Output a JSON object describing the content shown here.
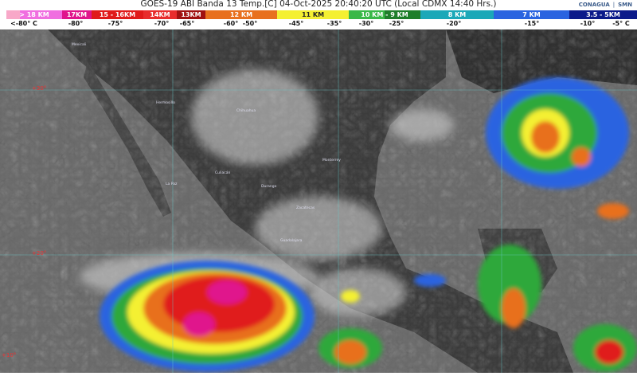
{
  "header": {
    "title": "GOES-19 ABI Banda 13 Temp.[C] 04-Oct-2025 20:40:20 UTC (Local CDMX  14:40 Hrs.)",
    "logos": [
      "CONAGUA",
      "SMN"
    ]
  },
  "legend": {
    "heights": [
      {
        "label": "> 18 KM",
        "color": "#f06ee0"
      },
      {
        "label": "17KM",
        "color": "#e0148c"
      },
      {
        "label": "15 - 16KM",
        "color": "#e01a1a"
      },
      {
        "label": "14KM",
        "color": "#e82c2c"
      },
      {
        "label": "13KM",
        "color": "#a01010"
      },
      {
        "label": "12 KM",
        "color": "#e8701e"
      },
      {
        "label": "11 KM",
        "color": "#f4f032"
      },
      {
        "label": "10 KM - 9 KM",
        "color": "#2ea83a"
      },
      {
        "label": "8 KM",
        "color": "#1aa8b8"
      },
      {
        "label": "7 KM",
        "color": "#2a64e0"
      },
      {
        "label": "3.5 - 5KM",
        "color": "#0c1a8a"
      }
    ],
    "temperatures": [
      "<-80° C",
      "-80°",
      "-75°",
      "-70°",
      "-65°",
      "-60°",
      "-50°",
      "-45°",
      "-35°",
      "-30°",
      "-25°",
      "-20°",
      "-15°",
      "-10°",
      "-5° C"
    ]
  },
  "map": {
    "latitudes": [
      "+30°",
      "+20°",
      "+10°"
    ],
    "cities": [
      "Mexicali",
      "Hermosillo",
      "Chihuahua",
      "La Paz",
      "Culiacán",
      "Durango",
      "Monterrey",
      "Zacatecas",
      "Guadalajara"
    ]
  }
}
